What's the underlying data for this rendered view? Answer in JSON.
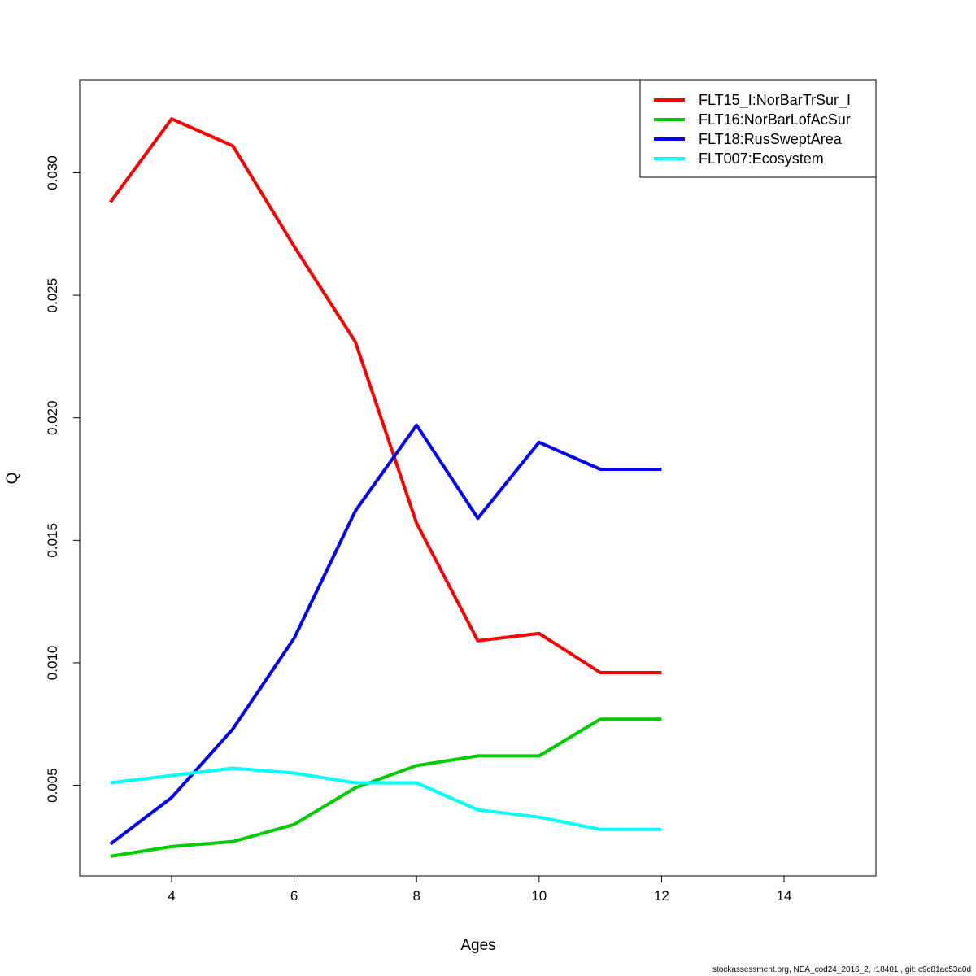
{
  "chart_data": {
    "type": "line",
    "title": "",
    "xlabel": "Ages",
    "ylabel": "Q",
    "xlim": [
      2.5,
      15.5
    ],
    "ylim": [
      0.0013,
      0.0338
    ],
    "x_ticks": [
      4,
      6,
      8,
      10,
      12,
      14
    ],
    "x_tick_labels": [
      "4",
      "6",
      "8",
      "10",
      "12",
      "14"
    ],
    "y_ticks": [
      0.005,
      0.01,
      0.015,
      0.02,
      0.025,
      0.03
    ],
    "y_tick_labels": [
      "0.005",
      "0.010",
      "0.015",
      "0.020",
      "0.025",
      "0.030"
    ],
    "x": [
      3,
      4,
      5,
      6,
      7,
      8,
      9,
      10,
      11,
      12
    ],
    "legend_position": "top-right",
    "grid": false,
    "series": [
      {
        "name": "FLT15_I:NorBarTrSur_I",
        "color": "#ff0000",
        "values": [
          0.0288,
          0.0322,
          0.0311,
          0.027,
          0.0231,
          0.0157,
          0.0109,
          0.0112,
          0.0096,
          0.0096
        ]
      },
      {
        "name": "FLT16:NorBarLofAcSur",
        "color": "#00cd00",
        "values": [
          0.0021,
          0.0025,
          0.0027,
          0.0034,
          0.0049,
          0.0058,
          0.0062,
          0.0062,
          0.0077,
          0.0077
        ]
      },
      {
        "name": "FLT18:RusSweptArea",
        "color": "#0000ff",
        "values": [
          0.0026,
          0.0045,
          0.0073,
          0.011,
          0.0162,
          0.0197,
          0.0159,
          0.019,
          0.0179,
          0.0179
        ]
      },
      {
        "name": "FLT007:Ecosystem",
        "color": "#00ffff",
        "values": [
          0.0051,
          0.0054,
          0.0057,
          0.0055,
          0.0051,
          0.0051,
          0.004,
          0.0037,
          0.0032,
          0.0032
        ]
      }
    ]
  },
  "footer": "stockassessment.org, NEA_cod24_2016_2, r18401 , git: c9c81ac53a0d"
}
